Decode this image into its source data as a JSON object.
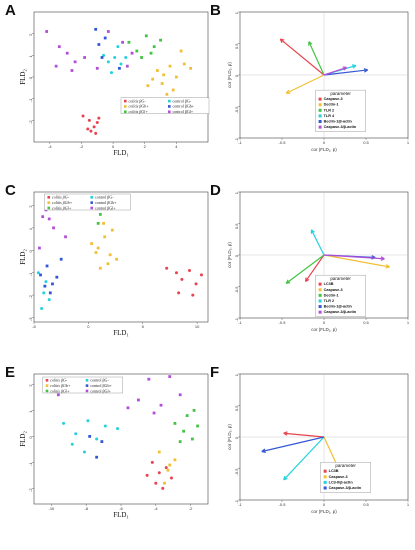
{
  "colors": {
    "colitis_bg_minus": "#e8434e",
    "colitis_bg_plus": "#f2bf33",
    "colitis_bg_star": "#43c343",
    "control_bg_minus": "#22d2de",
    "control_bg_plus": "#3457d6",
    "control_bg_star": "#b34fd6",
    "casp3_lc": "#e0a7d9",
    "axis": "#666666",
    "frame": "#444444"
  },
  "scatter_legend": [
    "colitis βG-",
    "colitis βGb+",
    "colitis βGl+",
    "control βG-",
    "control βGb+",
    "control βGl+"
  ],
  "chart_data": [
    {
      "panel": "A",
      "type": "scatter",
      "xlabel": "FLD",
      "xlabel_sub": "1",
      "ylabel": "FLD",
      "ylabel_sub": "2",
      "xticks": [
        "-4",
        "-2",
        "0",
        "2",
        "4"
      ],
      "yticks": [
        "2",
        "1",
        "0",
        "-1",
        "-2"
      ],
      "xlim": [
        -5,
        6
      ],
      "ylim": [
        -3,
        3
      ],
      "series": [
        {
          "group": "colitis βG-",
          "x": [
            -1.9,
            -1.5,
            -1.2,
            -1.0,
            -1.4,
            -1.1,
            -0.9,
            -1.6
          ],
          "y": [
            -1.8,
            -2.0,
            -2.3,
            -2.1,
            -2.5,
            -2.6,
            -1.9,
            -2.4
          ]
        },
        {
          "group": "colitis βGb+",
          "x": [
            2.8,
            3.2,
            3.6,
            4.0,
            4.5,
            3.1,
            2.5,
            3.8,
            4.3,
            4.9,
            2.2,
            3.4
          ],
          "y": [
            0.3,
            0.1,
            0.5,
            0.0,
            0.6,
            -0.3,
            -0.1,
            -0.6,
            1.2,
            0.4,
            -0.4,
            -0.8
          ]
        },
        {
          "group": "colitis βGl+",
          "x": [
            1.0,
            1.5,
            2.1,
            2.6,
            3.0,
            1.8,
            2.4
          ],
          "y": [
            1.6,
            1.2,
            1.9,
            1.4,
            1.7,
            0.9,
            1.1
          ]
        },
        {
          "group": "control βG-",
          "x": [
            -0.6,
            -0.3,
            0.1,
            0.5,
            -0.1,
            0.8,
            0.3
          ],
          "y": [
            1.0,
            0.7,
            0.9,
            0.6,
            0.2,
            0.9,
            1.4
          ]
        },
        {
          "group": "control βGb+",
          "x": [
            -1.1,
            -0.9,
            -0.5,
            -0.7,
            0.4
          ],
          "y": [
            2.2,
            1.5,
            1.8,
            0.9,
            0.4
          ]
        },
        {
          "group": "control βGl+",
          "x": [
            -4.2,
            -3.6,
            -2.9,
            -2.4,
            -1.8,
            -1.0,
            -3.4,
            -2.6,
            -0.3,
            0.6,
            1.2,
            0.9
          ],
          "y": [
            2.1,
            0.5,
            1.1,
            0.7,
            0.9,
            0.4,
            1.4,
            0.3,
            2.1,
            1.6,
            1.1,
            0.5
          ]
        }
      ]
    },
    {
      "panel": "B",
      "type": "biplot",
      "title": "parameter",
      "xlabel": "cor (FLD₁, p)",
      "ylabel": "cor (FLD₂, p)",
      "xticks": [
        "-1",
        "-0.5",
        "0",
        "0.5",
        "1"
      ],
      "yticks": [
        "1",
        "0.5",
        "0",
        "-0.5",
        "-1"
      ],
      "xlim": [
        -1,
        1
      ],
      "ylim": [
        -1,
        1
      ],
      "vectors": [
        {
          "name": "Caspase-3",
          "x": -0.52,
          "y": 0.57
        },
        {
          "name": "Dectin-1",
          "x": -0.45,
          "y": -0.29
        },
        {
          "name": "TLR 2",
          "x": -0.18,
          "y": 0.53
        },
        {
          "name": "TLR 4",
          "x": 0.38,
          "y": 0.15
        },
        {
          "name": "Beclin-1/β-actin",
          "x": 0.52,
          "y": 0.08
        },
        {
          "name": "Caspase-3/β-actin",
          "x": 0.27,
          "y": 0.12
        }
      ]
    },
    {
      "panel": "C",
      "type": "scatter",
      "xlabel": "FLD",
      "xlabel_sub": "1",
      "ylabel": "FLD",
      "ylabel_sub": "2",
      "xticks": [
        "-5",
        "0",
        "5",
        "10"
      ],
      "yticks": [
        "2",
        "1",
        "0",
        "-1",
        "-2",
        "-3"
      ],
      "xlim": [
        -5,
        11
      ],
      "ylim": [
        -3.2,
        2.6
      ],
      "series": [
        {
          "group": "colitis βG-",
          "x": [
            7.2,
            8.1,
            8.6,
            9.3,
            9.9,
            10.4,
            8.3,
            9.6
          ],
          "y": [
            -0.8,
            -1.0,
            -1.3,
            -0.9,
            -1.5,
            -1.1,
            -1.9,
            -2.0
          ]
        },
        {
          "group": "colitis βGb+",
          "x": [
            0.3,
            0.9,
            1.5,
            2.0,
            2.6,
            1.1,
            1.8,
            0.7,
            2.2,
            1.4
          ],
          "y": [
            0.3,
            0.1,
            0.6,
            -0.2,
            -0.4,
            -0.8,
            -0.6,
            -0.1,
            0.9,
            1.2
          ]
        },
        {
          "group": "colitis βGl+",
          "x": [
            0.5,
            1.1,
            1.7,
            0.9
          ],
          "y": [
            2.0,
            1.6,
            1.9,
            1.2
          ]
        },
        {
          "group": "control βG-",
          "x": [
            -4.6,
            -4.1,
            -3.6,
            -4.3,
            -3.9
          ],
          "y": [
            -1.0,
            -1.9,
            -2.2,
            -2.6,
            -1.4
          ]
        },
        {
          "group": "control βGb+",
          "x": [
            -4.4,
            -3.8,
            -3.3,
            -2.9,
            -3.5,
            -4.0,
            -2.5
          ],
          "y": [
            -1.1,
            -0.7,
            -1.5,
            -1.2,
            -1.9,
            -1.6,
            -0.4
          ]
        },
        {
          "group": "control βGl+",
          "x": [
            -4.5,
            -3.9,
            -3.2,
            -2.7,
            -2.1,
            -3.6,
            -4.2
          ],
          "y": [
            0.1,
            1.8,
            1.0,
            2.1,
            0.6,
            1.4,
            1.5
          ]
        }
      ]
    },
    {
      "panel": "D",
      "type": "biplot",
      "title": "parameter",
      "xlabel": "cor (FLD₁, p)",
      "ylabel": "cor (FLD₂, p)",
      "xticks": [
        "-1",
        "-0.5",
        "0",
        "0.5",
        "1"
      ],
      "yticks": [
        "1",
        "0.5",
        "0",
        "-0.5",
        "-1"
      ],
      "xlim": [
        -1,
        1
      ],
      "ylim": [
        -1,
        1
      ],
      "vectors": [
        {
          "name": "LC3B",
          "x": -0.22,
          "y": -0.42
        },
        {
          "name": "Caspase-3",
          "x": 0.78,
          "y": -0.19
        },
        {
          "name": "Dectin-1",
          "x": -0.45,
          "y": -0.45
        },
        {
          "name": "TLR 2",
          "x": -0.15,
          "y": 0.4
        },
        {
          "name": "Beclin-1/β-actin",
          "x": 0.61,
          "y": -0.04
        },
        {
          "name": "Caspase-3/β-actin",
          "x": 0.72,
          "y": -0.06
        }
      ]
    },
    {
      "panel": "E",
      "type": "scatter",
      "xlabel": "FLD",
      "xlabel_sub": "1",
      "ylabel": "FLD",
      "ylabel_sub": "2",
      "xticks": [
        "-10",
        "-8",
        "-6",
        "-4",
        "-2"
      ],
      "yticks": [
        "2",
        "1",
        "0",
        "-1",
        "-2"
      ],
      "xlim": [
        -11,
        -1
      ],
      "ylim": [
        -2.6,
        2.4
      ],
      "series": [
        {
          "group": "colitis βG-",
          "x": [
            -4.2,
            -3.8,
            -3.4,
            -4.0,
            -3.6,
            -3.1,
            -4.5
          ],
          "y": [
            -1.0,
            -1.4,
            -1.2,
            -1.8,
            -2.0,
            -1.6,
            -1.5
          ]
        },
        {
          "group": "colitis βGb+",
          "x": [
            -3.8,
            -3.2,
            -3.5,
            -2.9,
            -3.3
          ],
          "y": [
            -0.6,
            -1.1,
            -1.8,
            -0.9,
            -1.3
          ]
        },
        {
          "group": "colitis βGl+",
          "x": [
            -2.9,
            -2.4,
            -1.9,
            -1.6,
            -2.2,
            -1.8,
            -2.6
          ],
          "y": [
            0.5,
            0.2,
            -0.1,
            0.4,
            0.8,
            1.0,
            -0.2
          ]
        },
        {
          "group": "control βG-",
          "x": [
            -9.3,
            -8.6,
            -7.9,
            -8.8,
            -6.9,
            -7.4,
            -8.1,
            -6.2
          ],
          "y": [
            0.5,
            0.1,
            0.6,
            -0.3,
            0.4,
            -0.1,
            -0.6,
            0.3
          ]
        },
        {
          "group": "control βGb+",
          "x": [
            -7.8,
            -7.1,
            -7.4
          ],
          "y": [
            0.0,
            -0.2,
            -0.8
          ]
        },
        {
          "group": "control βGl+",
          "x": [
            -10.2,
            -9.6,
            -6.8,
            -5.6,
            -5.0,
            -4.1,
            -3.2,
            -2.6,
            -3.7,
            -4.4
          ],
          "y": [
            1.9,
            1.6,
            2.0,
            1.1,
            1.4,
            0.9,
            2.3,
            1.6,
            1.2,
            2.2
          ]
        }
      ]
    },
    {
      "panel": "F",
      "type": "biplot",
      "title": "parameter",
      "xlabel": "cor (FLD₁, p)",
      "ylabel": "cor (FLD₂, p)",
      "xticks": [
        "-1",
        "-0.5",
        "0",
        "0.5",
        "1"
      ],
      "yticks": [
        "1",
        "0.5",
        "0",
        "-0.5",
        "-1"
      ],
      "xlim": [
        -1,
        1
      ],
      "ylim": [
        -1,
        1
      ],
      "vectors": [
        {
          "name": "LC3B",
          "x": -0.48,
          "y": 0.06
        },
        {
          "name": "Caspase-3",
          "x": 0.19,
          "y": -0.55
        },
        {
          "name": "LC3-II/β-actin",
          "x": -0.48,
          "y": -0.68
        },
        {
          "name": "Caspase-3/β-actin",
          "x": -0.74,
          "y": -0.23
        }
      ]
    }
  ],
  "panels": {
    "A": {
      "label": "A"
    },
    "B": {
      "label": "B"
    },
    "C": {
      "label": "C"
    },
    "D": {
      "label": "D"
    },
    "E": {
      "label": "E"
    },
    "F": {
      "label": "F"
    }
  }
}
